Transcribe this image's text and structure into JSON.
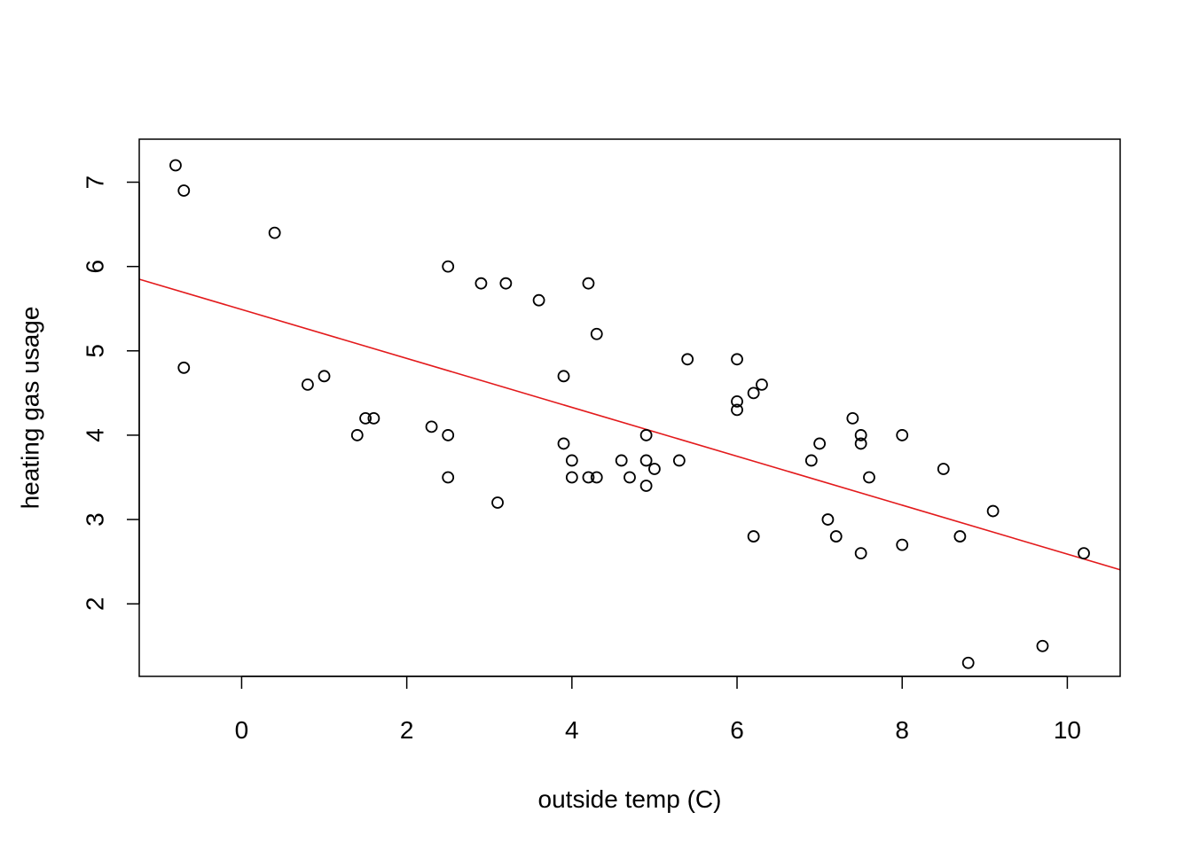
{
  "chart_data": {
    "type": "scatter",
    "title": "",
    "xlabel": "outside temp (C)",
    "ylabel": "heating gas usage",
    "xlim": [
      -1.24,
      10.64
    ],
    "ylim": [
      1.14,
      7.51
    ],
    "x_ticks": [
      0,
      2,
      4,
      6,
      8,
      10
    ],
    "y_ticks": [
      2,
      3,
      4,
      5,
      6,
      7
    ],
    "grid": false,
    "legend": "none",
    "point_color": "#000000",
    "fit_line_color": "#e31a1c",
    "series": [
      {
        "points": [
          {
            "x": -0.8,
            "y": 7.2
          },
          {
            "x": -0.7,
            "y": 6.9
          },
          {
            "x": 0.4,
            "y": 6.4
          },
          {
            "x": 2.5,
            "y": 6.0
          },
          {
            "x": 2.9,
            "y": 5.8
          },
          {
            "x": 3.2,
            "y": 5.8
          },
          {
            "x": 3.6,
            "y": 5.6
          },
          {
            "x": 4.2,
            "y": 5.8
          },
          {
            "x": 4.3,
            "y": 5.2
          },
          {
            "x": 5.4,
            "y": 4.9
          },
          {
            "x": 6.0,
            "y": 4.9
          },
          {
            "x": 6.0,
            "y": 4.4
          },
          {
            "x": 6.0,
            "y": 4.3
          },
          {
            "x": 6.2,
            "y": 4.5
          },
          {
            "x": 6.3,
            "y": 4.6
          },
          {
            "x": -0.7,
            "y": 4.8
          },
          {
            "x": 0.8,
            "y": 4.6
          },
          {
            "x": 1.0,
            "y": 4.7
          },
          {
            "x": 1.4,
            "y": 4.0
          },
          {
            "x": 1.5,
            "y": 4.2
          },
          {
            "x": 1.6,
            "y": 4.2
          },
          {
            "x": 2.3,
            "y": 4.1
          },
          {
            "x": 2.5,
            "y": 4.0
          },
          {
            "x": 2.5,
            "y": 3.5
          },
          {
            "x": 3.1,
            "y": 3.2
          },
          {
            "x": 3.9,
            "y": 4.7
          },
          {
            "x": 3.9,
            "y": 3.9
          },
          {
            "x": 4.0,
            "y": 3.7
          },
          {
            "x": 4.0,
            "y": 3.5
          },
          {
            "x": 4.2,
            "y": 3.5
          },
          {
            "x": 4.3,
            "y": 3.5
          },
          {
            "x": 4.6,
            "y": 3.7
          },
          {
            "x": 4.7,
            "y": 3.5
          },
          {
            "x": 4.9,
            "y": 4.0
          },
          {
            "x": 4.9,
            "y": 3.7
          },
          {
            "x": 4.9,
            "y": 3.4
          },
          {
            "x": 5.0,
            "y": 3.6
          },
          {
            "x": 5.3,
            "y": 3.7
          },
          {
            "x": 6.2,
            "y": 2.8
          },
          {
            "x": 6.9,
            "y": 3.7
          },
          {
            "x": 7.0,
            "y": 3.9
          },
          {
            "x": 7.1,
            "y": 3.0
          },
          {
            "x": 7.2,
            "y": 2.8
          },
          {
            "x": 7.4,
            "y": 4.2
          },
          {
            "x": 7.5,
            "y": 4.0
          },
          {
            "x": 7.5,
            "y": 3.9
          },
          {
            "x": 7.5,
            "y": 2.6
          },
          {
            "x": 7.6,
            "y": 3.5
          },
          {
            "x": 8.0,
            "y": 4.0
          },
          {
            "x": 8.0,
            "y": 2.7
          },
          {
            "x": 8.5,
            "y": 3.6
          },
          {
            "x": 8.7,
            "y": 2.8
          },
          {
            "x": 8.8,
            "y": 1.3
          },
          {
            "x": 9.1,
            "y": 3.1
          },
          {
            "x": 9.7,
            "y": 1.5
          },
          {
            "x": 10.2,
            "y": 2.6
          }
        ]
      }
    ],
    "fit_line": {
      "intercept": 5.49,
      "slope": -0.29
    }
  }
}
